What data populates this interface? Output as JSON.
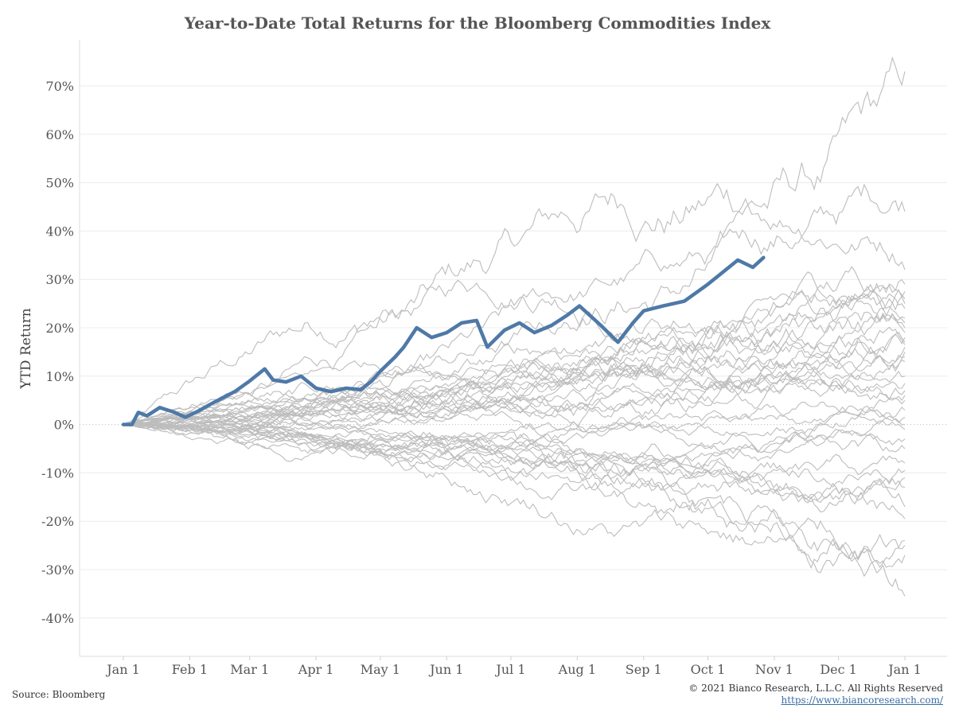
{
  "chart_data": {
    "type": "line",
    "title": "Year-to-Date Total Returns for the Bloomberg Commodities Index",
    "xlabel": "",
    "ylabel": "YTD Return",
    "x_tick_labels": [
      "Jan 1",
      "Feb 1",
      "Mar 1",
      "Apr 1",
      "May 1",
      "Jun 1",
      "Jul 1",
      "Aug 1",
      "Sep 1",
      "Oct 1",
      "Nov 1",
      "Dec 1",
      "Jan 1"
    ],
    "y_tick_labels": [
      "70%",
      "60%",
      "50%",
      "40%",
      "30%",
      "20%",
      "10%",
      "0%",
      "-10%",
      "-20%",
      "-30%",
      "-40%"
    ],
    "ylim": [
      -0.48,
      0.79
    ],
    "grid": true,
    "colors": {
      "highlight": "#4e79a7",
      "history": "#bdbdbd",
      "grid": "#ececec",
      "zero_line": "#b8b8b8"
    },
    "highlight_series": {
      "points": [
        [
          "Jan 1",
          0
        ],
        [
          "Jan 5",
          0
        ],
        [
          "Jan 8",
          2.5
        ],
        [
          "Jan 12",
          1.8
        ],
        [
          "Jan 18",
          3.5
        ],
        [
          "Jan 25",
          2.5
        ],
        [
          "Jan 30",
          1.5
        ],
        [
          "Feb 5",
          2.8
        ],
        [
          "Feb 12",
          4.5
        ],
        [
          "Feb 22",
          6.8
        ],
        [
          "Mar 1",
          9.0
        ],
        [
          "Mar 8",
          11.5
        ],
        [
          "Mar 12",
          9.2
        ],
        [
          "Mar 18",
          8.8
        ],
        [
          "Mar 25",
          10.0
        ],
        [
          "Apr 1",
          7.5
        ],
        [
          "Apr 8",
          6.8
        ],
        [
          "Apr 15",
          7.5
        ],
        [
          "Apr 22",
          7.2
        ],
        [
          "Apr 27",
          9.0
        ],
        [
          "May 1",
          11.0
        ],
        [
          "May 8",
          14.0
        ],
        [
          "May 12",
          16.0
        ],
        [
          "May 18",
          20.0
        ],
        [
          "May 25",
          18.0
        ],
        [
          "Jun 1",
          19.0
        ],
        [
          "Jun 8",
          21.0
        ],
        [
          "Jun 15",
          21.5
        ],
        [
          "Jun 20",
          16.0
        ],
        [
          "Jun 28",
          19.5
        ],
        [
          "Jul 5",
          21.0
        ],
        [
          "Jul 12",
          19.0
        ],
        [
          "Jul 20",
          20.5
        ],
        [
          "Jul 27",
          22.5
        ],
        [
          "Aug 2",
          24.5
        ],
        [
          "Aug 12",
          20.5
        ],
        [
          "Aug 20",
          17.0
        ],
        [
          "Aug 27",
          21.0
        ],
        [
          "Sep 1",
          23.5
        ],
        [
          "Sep 10",
          24.5
        ],
        [
          "Sep 20",
          25.5
        ],
        [
          "Oct 1",
          29.0
        ],
        [
          "Oct 8",
          31.5
        ],
        [
          "Oct 15",
          34.0
        ],
        [
          "Oct 22",
          32.5
        ],
        [
          "Oct 27",
          34.5
        ]
      ]
    },
    "historical_series_count": 40,
    "historical_year_end_values": [
      73,
      44,
      32,
      29,
      27.5,
      26,
      25,
      24,
      22,
      21,
      20,
      19,
      18,
      17,
      16.5,
      16,
      15,
      14,
      13,
      10,
      8.5,
      7,
      6,
      5,
      3,
      1.5,
      0,
      -1,
      -3,
      -5,
      -8,
      -9.5,
      -11,
      -13,
      -17,
      -19.5,
      -24,
      -25,
      -27,
      -35.5
    ]
  },
  "footer": {
    "source": "Source: Bloomberg",
    "copyright": "© 2021 Bianco Research, L.L.C. All Rights Reserved",
    "url": "https://www.biancoresearch.com/"
  }
}
